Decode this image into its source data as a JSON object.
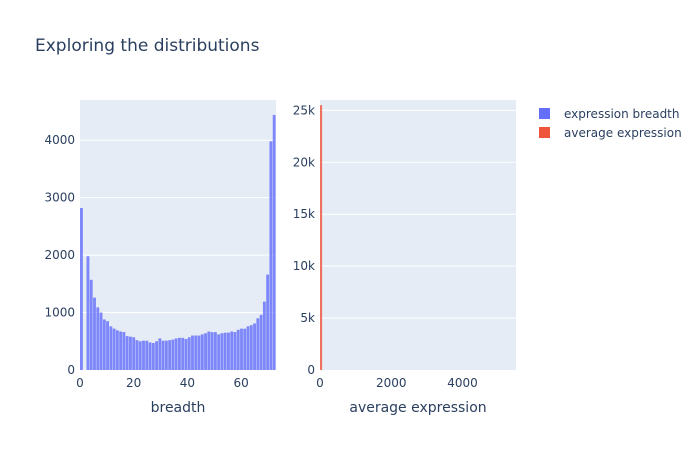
{
  "title": "Exploring the distributions",
  "legend": {
    "placement": "top-right",
    "items": [
      {
        "name": "expression breadth",
        "color": "#636efa"
      },
      {
        "name": "average expression",
        "color": "#ef553b"
      }
    ]
  },
  "chart_data": [
    {
      "type": "bar",
      "name": "expression breadth",
      "color": "#636efa",
      "xlabel": "breadth",
      "ylabel": "",
      "xlim": [
        0,
        73
      ],
      "ylim": [
        0,
        4700
      ],
      "xticks": [
        0,
        20,
        40,
        60
      ],
      "yticks": [
        0,
        1000,
        2000,
        3000,
        4000
      ],
      "grid": true,
      "bins": [
        [
          0,
          2820
        ],
        [
          1,
          0
        ],
        [
          2,
          1980
        ],
        [
          3,
          1570
        ],
        [
          4,
          1260
        ],
        [
          5,
          1090
        ],
        [
          6,
          1000
        ],
        [
          7,
          880
        ],
        [
          8,
          850
        ],
        [
          9,
          760
        ],
        [
          10,
          720
        ],
        [
          11,
          690
        ],
        [
          12,
          670
        ],
        [
          13,
          660
        ],
        [
          14,
          590
        ],
        [
          15,
          580
        ],
        [
          16,
          570
        ],
        [
          17,
          520
        ],
        [
          18,
          500
        ],
        [
          19,
          510
        ],
        [
          20,
          510
        ],
        [
          21,
          480
        ],
        [
          22,
          470
        ],
        [
          23,
          500
        ],
        [
          24,
          550
        ],
        [
          25,
          510
        ],
        [
          26,
          510
        ],
        [
          27,
          520
        ],
        [
          28,
          530
        ],
        [
          29,
          550
        ],
        [
          30,
          560
        ],
        [
          31,
          560
        ],
        [
          32,
          540
        ],
        [
          33,
          570
        ],
        [
          34,
          600
        ],
        [
          35,
          600
        ],
        [
          36,
          600
        ],
        [
          37,
          620
        ],
        [
          38,
          640
        ],
        [
          39,
          670
        ],
        [
          40,
          660
        ],
        [
          41,
          660
        ],
        [
          42,
          620
        ],
        [
          43,
          640
        ],
        [
          44,
          650
        ],
        [
          45,
          650
        ],
        [
          46,
          670
        ],
        [
          47,
          660
        ],
        [
          48,
          700
        ],
        [
          49,
          720
        ],
        [
          50,
          720
        ],
        [
          51,
          760
        ],
        [
          52,
          780
        ],
        [
          53,
          810
        ],
        [
          54,
          900
        ],
        [
          55,
          960
        ],
        [
          56,
          1190
        ],
        [
          57,
          1660
        ],
        [
          58,
          3980
        ],
        [
          59,
          4440
        ]
      ]
    },
    {
      "type": "bar",
      "name": "average expression",
      "color": "#ef553b",
      "xlabel": "average expression",
      "ylabel": "",
      "xlim": [
        0,
        5500
      ],
      "ylim": [
        0,
        26000
      ],
      "xticks": [
        0,
        2000,
        4000
      ],
      "yticks": [
        0,
        5000,
        10000,
        15000,
        20000,
        25000
      ],
      "ytick_labels": [
        "0",
        "5k",
        "10k",
        "15k",
        "20k",
        "25k"
      ],
      "grid": true,
      "bins": [
        [
          0,
          25500
        ]
      ]
    }
  ]
}
